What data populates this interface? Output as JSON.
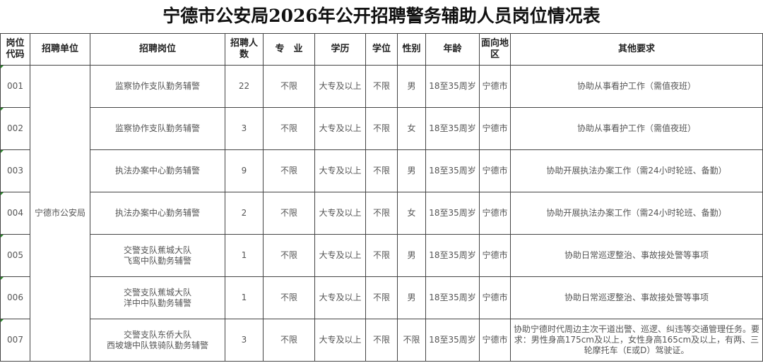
{
  "title": "宁德市公安局2026年公开招聘警务辅助人员岗位情况表",
  "headers": [
    "岗位代码",
    "招聘单位",
    "招聘岗位",
    "招聘人数",
    "专　业",
    "学历",
    "学位",
    "性别",
    "年龄",
    "面向地区",
    "其他要求"
  ],
  "unit": "宁德市公安局",
  "rows": [
    {
      "code": "001",
      "post": "监察协作支队勤务辅警",
      "count": "22",
      "major": "不限",
      "edu": "大专及以上",
      "degree": "不限",
      "gender": "男",
      "age": "18至35周岁",
      "region": "宁德市",
      "other": "协助从事看护工作（需值夜班）"
    },
    {
      "code": "002",
      "post": "监察协作支队勤务辅警",
      "count": "3",
      "major": "不限",
      "edu": "大专及以上",
      "degree": "不限",
      "gender": "女",
      "age": "18至35周岁",
      "region": "宁德市",
      "other": "协助从事看护工作（需值夜班）"
    },
    {
      "code": "003",
      "post": "执法办案中心勤务辅警",
      "count": "9",
      "major": "不限",
      "edu": "大专及以上",
      "degree": "不限",
      "gender": "男",
      "age": "18至35周岁",
      "region": "宁德市",
      "other": "协助开展执法办案工作（需24小时轮班、备勤）"
    },
    {
      "code": "004",
      "post": "执法办案中心勤务辅警",
      "count": "2",
      "major": "不限",
      "edu": "大专及以上",
      "degree": "不限",
      "gender": "女",
      "age": "18至35周岁",
      "region": "宁德市",
      "other": "协助开展执法办案工作（需24小时轮班、备勤）"
    },
    {
      "code": "005",
      "post": "交警支队蕉城大队\n飞鸾中队勤务辅警",
      "count": "1",
      "major": "不限",
      "edu": "大专及以上",
      "degree": "不限",
      "gender": "男",
      "age": "18至35周岁",
      "region": "宁德市",
      "other": "协助日常巡逻整治、事故接处警等事项"
    },
    {
      "code": "006",
      "post": "交警支队蕉城大队\n洋中中队勤务辅警",
      "count": "1",
      "major": "不限",
      "edu": "大专及以上",
      "degree": "不限",
      "gender": "男",
      "age": "18至35周岁",
      "region": "宁德市",
      "other": "协助日常巡逻整治、事故接处警等事项"
    },
    {
      "code": "007",
      "post": "交警支队东侨大队\n西坡塘中队铁骑队勤务辅警",
      "count": "3",
      "major": "不限",
      "edu": "大专及以上",
      "degree": "不限",
      "gender": "不限",
      "age": "18至35周岁",
      "region": "宁德市",
      "other": "协助宁德时代周边主次干道出警、巡逻、纠违等交通管理任务。要求：男性身高175cm及以上，女性身高165cm及以上，有两、三轮摩托车（E或D）驾驶证。"
    }
  ]
}
